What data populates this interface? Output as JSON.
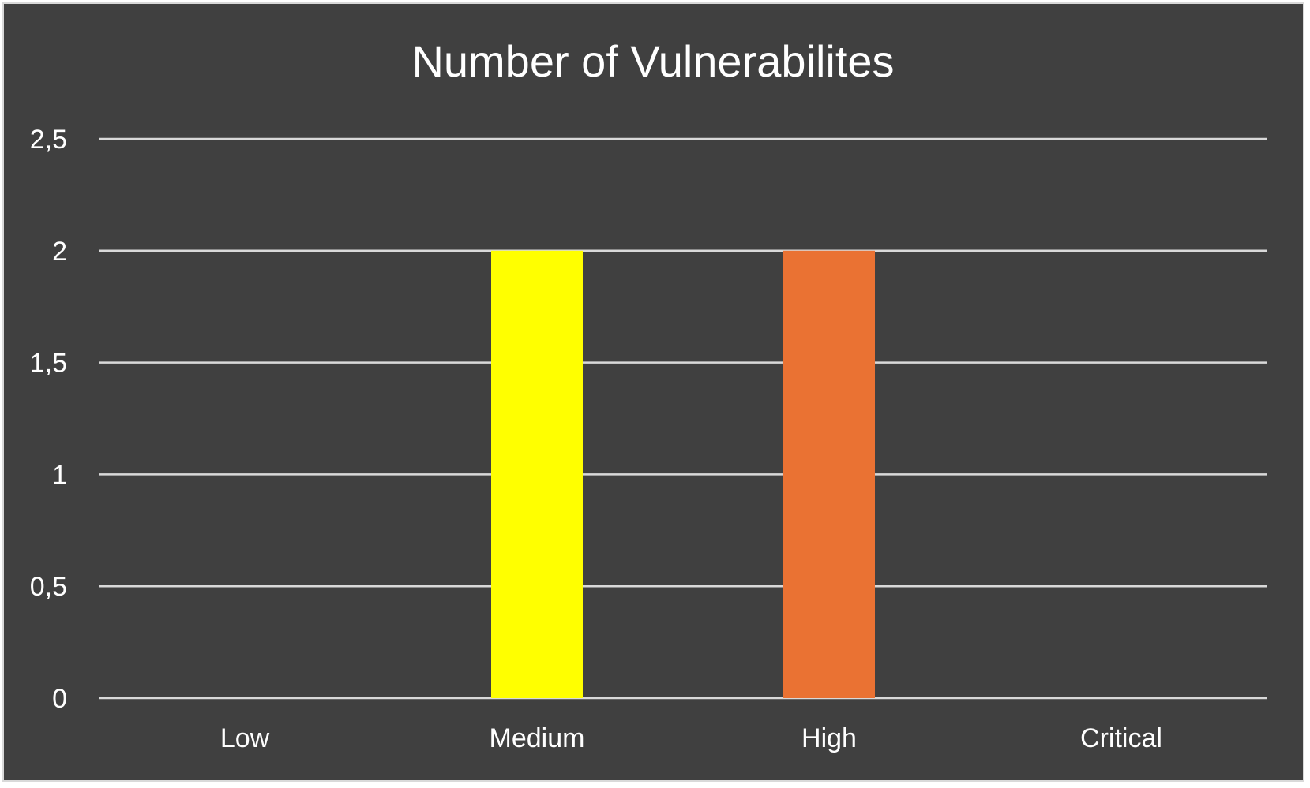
{
  "chart_data": {
    "type": "bar",
    "title": "Number of Vulnerabilites",
    "xlabel": "",
    "ylabel": "",
    "categories": [
      "Low",
      "Medium",
      "High",
      "Critical"
    ],
    "values": [
      0,
      2,
      2,
      0
    ],
    "colors": [
      "#ffff00",
      "#ffff00",
      "#ea7233",
      "#c00000"
    ],
    "y_ticks": [
      "0",
      "0,5",
      "1",
      "1,5",
      "2",
      "2,5"
    ],
    "ylim": [
      0,
      2.5
    ],
    "grid": true,
    "legend": "none",
    "background": "#404040",
    "text_color": "#ffffff",
    "gridline_color": "#d9d9d9"
  }
}
